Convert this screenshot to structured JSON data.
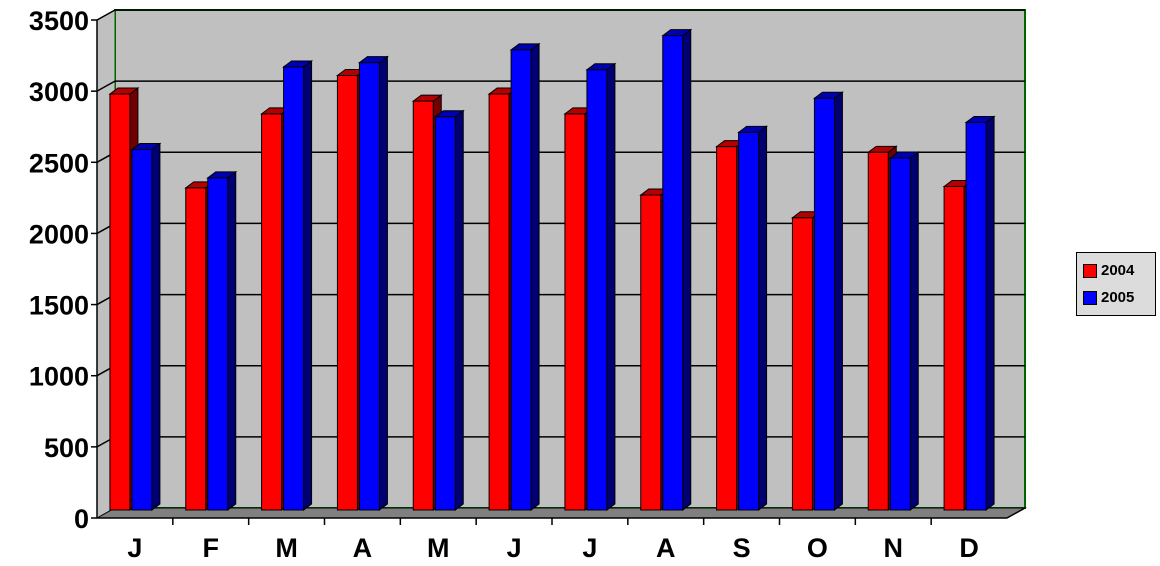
{
  "chart_data": {
    "type": "bar",
    "categories": [
      "J",
      "F",
      "M",
      "A",
      "M",
      "J",
      "J",
      "A",
      "S",
      "O",
      "N",
      "D"
    ],
    "series": [
      {
        "name": "2004",
        "color": "#ff0000",
        "values": [
          2980,
          2320,
          2840,
          3110,
          2930,
          2980,
          2840,
          2270,
          2610,
          2110,
          2570,
          2330
        ]
      },
      {
        "name": "2005",
        "color": "#0000ff",
        "values": [
          2590,
          2390,
          3170,
          3200,
          2820,
          3290,
          3150,
          3390,
          2710,
          2950,
          2530,
          2780
        ]
      }
    ],
    "y_ticks": [
      "0",
      "500",
      "1000",
      "1500",
      "2000",
      "2500",
      "3000",
      "3500"
    ],
    "ylim": [
      0,
      3500
    ],
    "grid": true,
    "legend_position": "right",
    "colors": {
      "plot_background": "#c0c0c0",
      "floor": "#808080",
      "axis_line": "#006400"
    }
  }
}
